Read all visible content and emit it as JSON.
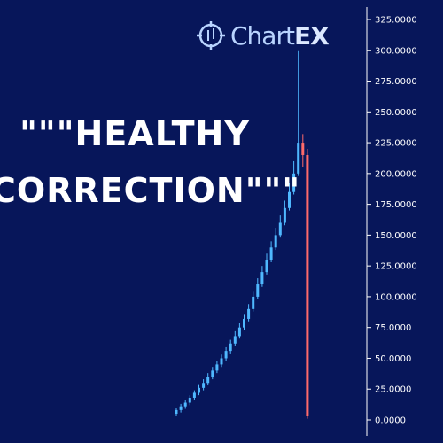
{
  "logo": {
    "text_main": "Chart",
    "text_accent": "EX"
  },
  "headline": {
    "line1": "\"\"\"HEALTHY",
    "line2": "CORRECTION\"\"\""
  },
  "colors": {
    "background": "#07165a",
    "up": "#4fb8ff",
    "down": "#ff6a6a",
    "axis": "#ffffff"
  },
  "chart_data": {
    "type": "candlestick",
    "title": "",
    "xlabel": "",
    "ylabel": "",
    "ylim": [
      0,
      325
    ],
    "yticks": [
      "325.0000",
      "300.0000",
      "275.0000",
      "250.0000",
      "225.0000",
      "200.0000",
      "175.0000",
      "150.0000",
      "125.0000",
      "100.0000",
      "75.0000",
      "50.0000",
      "25.0000",
      "0.0000"
    ],
    "grid": false,
    "series": [
      {
        "candles": [
          {
            "o": 5,
            "c": 8,
            "h": 10,
            "l": 3
          },
          {
            "o": 8,
            "c": 11,
            "h": 13,
            "l": 6
          },
          {
            "o": 11,
            "c": 14,
            "h": 16,
            "l": 9
          },
          {
            "o": 14,
            "c": 18,
            "h": 20,
            "l": 12
          },
          {
            "o": 18,
            "c": 22,
            "h": 24,
            "l": 16
          },
          {
            "o": 22,
            "c": 26,
            "h": 29,
            "l": 20
          },
          {
            "o": 26,
            "c": 30,
            "h": 33,
            "l": 24
          },
          {
            "o": 30,
            "c": 35,
            "h": 38,
            "l": 28
          },
          {
            "o": 35,
            "c": 40,
            "h": 43,
            "l": 33
          },
          {
            "o": 40,
            "c": 45,
            "h": 48,
            "l": 38
          },
          {
            "o": 45,
            "c": 50,
            "h": 53,
            "l": 43
          },
          {
            "o": 50,
            "c": 56,
            "h": 59,
            "l": 48
          },
          {
            "o": 56,
            "c": 62,
            "h": 65,
            "l": 54
          },
          {
            "o": 62,
            "c": 68,
            "h": 72,
            "l": 60
          },
          {
            "o": 68,
            "c": 75,
            "h": 79,
            "l": 66
          },
          {
            "o": 75,
            "c": 82,
            "h": 86,
            "l": 73
          },
          {
            "o": 82,
            "c": 90,
            "h": 94,
            "l": 80
          },
          {
            "o": 90,
            "c": 100,
            "h": 104,
            "l": 88
          },
          {
            "o": 100,
            "c": 110,
            "h": 115,
            "l": 98
          },
          {
            "o": 110,
            "c": 120,
            "h": 125,
            "l": 108
          },
          {
            "o": 120,
            "c": 130,
            "h": 135,
            "l": 118
          },
          {
            "o": 130,
            "c": 140,
            "h": 145,
            "l": 128
          },
          {
            "o": 140,
            "c": 150,
            "h": 156,
            "l": 138
          },
          {
            "o": 150,
            "c": 160,
            "h": 166,
            "l": 148
          },
          {
            "o": 160,
            "c": 172,
            "h": 178,
            "l": 158
          },
          {
            "o": 172,
            "c": 185,
            "h": 192,
            "l": 170
          },
          {
            "o": 185,
            "c": 200,
            "h": 210,
            "l": 183
          },
          {
            "o": 200,
            "c": 225,
            "h": 300,
            "l": 198
          },
          {
            "o": 225,
            "c": 215,
            "h": 232,
            "l": 205
          },
          {
            "o": 215,
            "c": 3,
            "h": 220,
            "l": 1
          }
        ]
      }
    ]
  }
}
